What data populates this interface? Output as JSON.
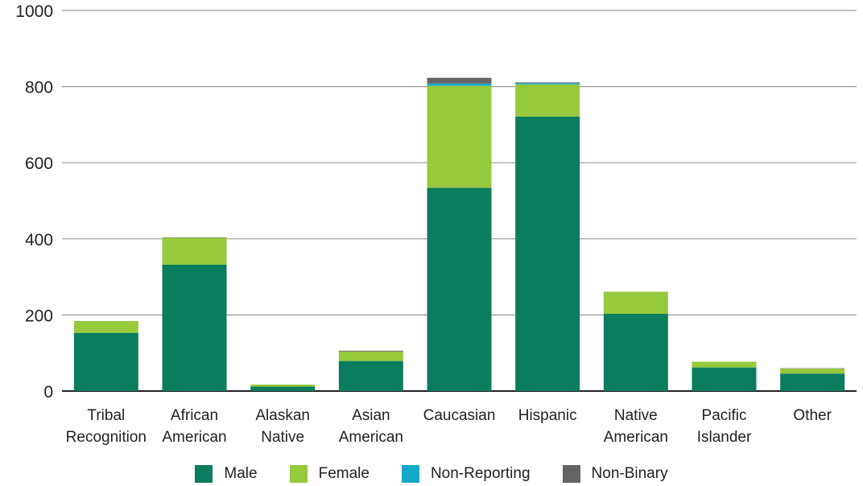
{
  "chart_data": {
    "type": "bar",
    "stacked": true,
    "categories": [
      [
        "Tribal",
        "Recognition"
      ],
      [
        "African",
        "American"
      ],
      [
        "Alaskan",
        "Native"
      ],
      [
        "Asian",
        "American"
      ],
      [
        "Caucasian"
      ],
      [
        "Hispanic"
      ],
      [
        "Native",
        "American"
      ],
      [
        "Pacific",
        "Islander"
      ],
      [
        "Other"
      ]
    ],
    "series": [
      {
        "name": "Male",
        "color": "#0b7c5e",
        "values": [
          153,
          332,
          12,
          79,
          534,
          721,
          203,
          62,
          46
        ]
      },
      {
        "name": "Female",
        "color": "#97c93d",
        "values": [
          31,
          71,
          5,
          25,
          268,
          85,
          58,
          15,
          13
        ]
      },
      {
        "name": "Non-Reporting",
        "color": "#15a9c8",
        "values": [
          0,
          0,
          0,
          0,
          6,
          3,
          0,
          0,
          0
        ]
      },
      {
        "name": "Non-Binary",
        "color": "#646464",
        "values": [
          0,
          1,
          0,
          2,
          15,
          2,
          0,
          0,
          1
        ]
      }
    ],
    "ylim": [
      0,
      1000
    ],
    "yticks": [
      0,
      200,
      400,
      600,
      800,
      1000
    ],
    "grid": true,
    "legend_position": "bottom",
    "title": "",
    "xlabel": "",
    "ylabel": ""
  }
}
